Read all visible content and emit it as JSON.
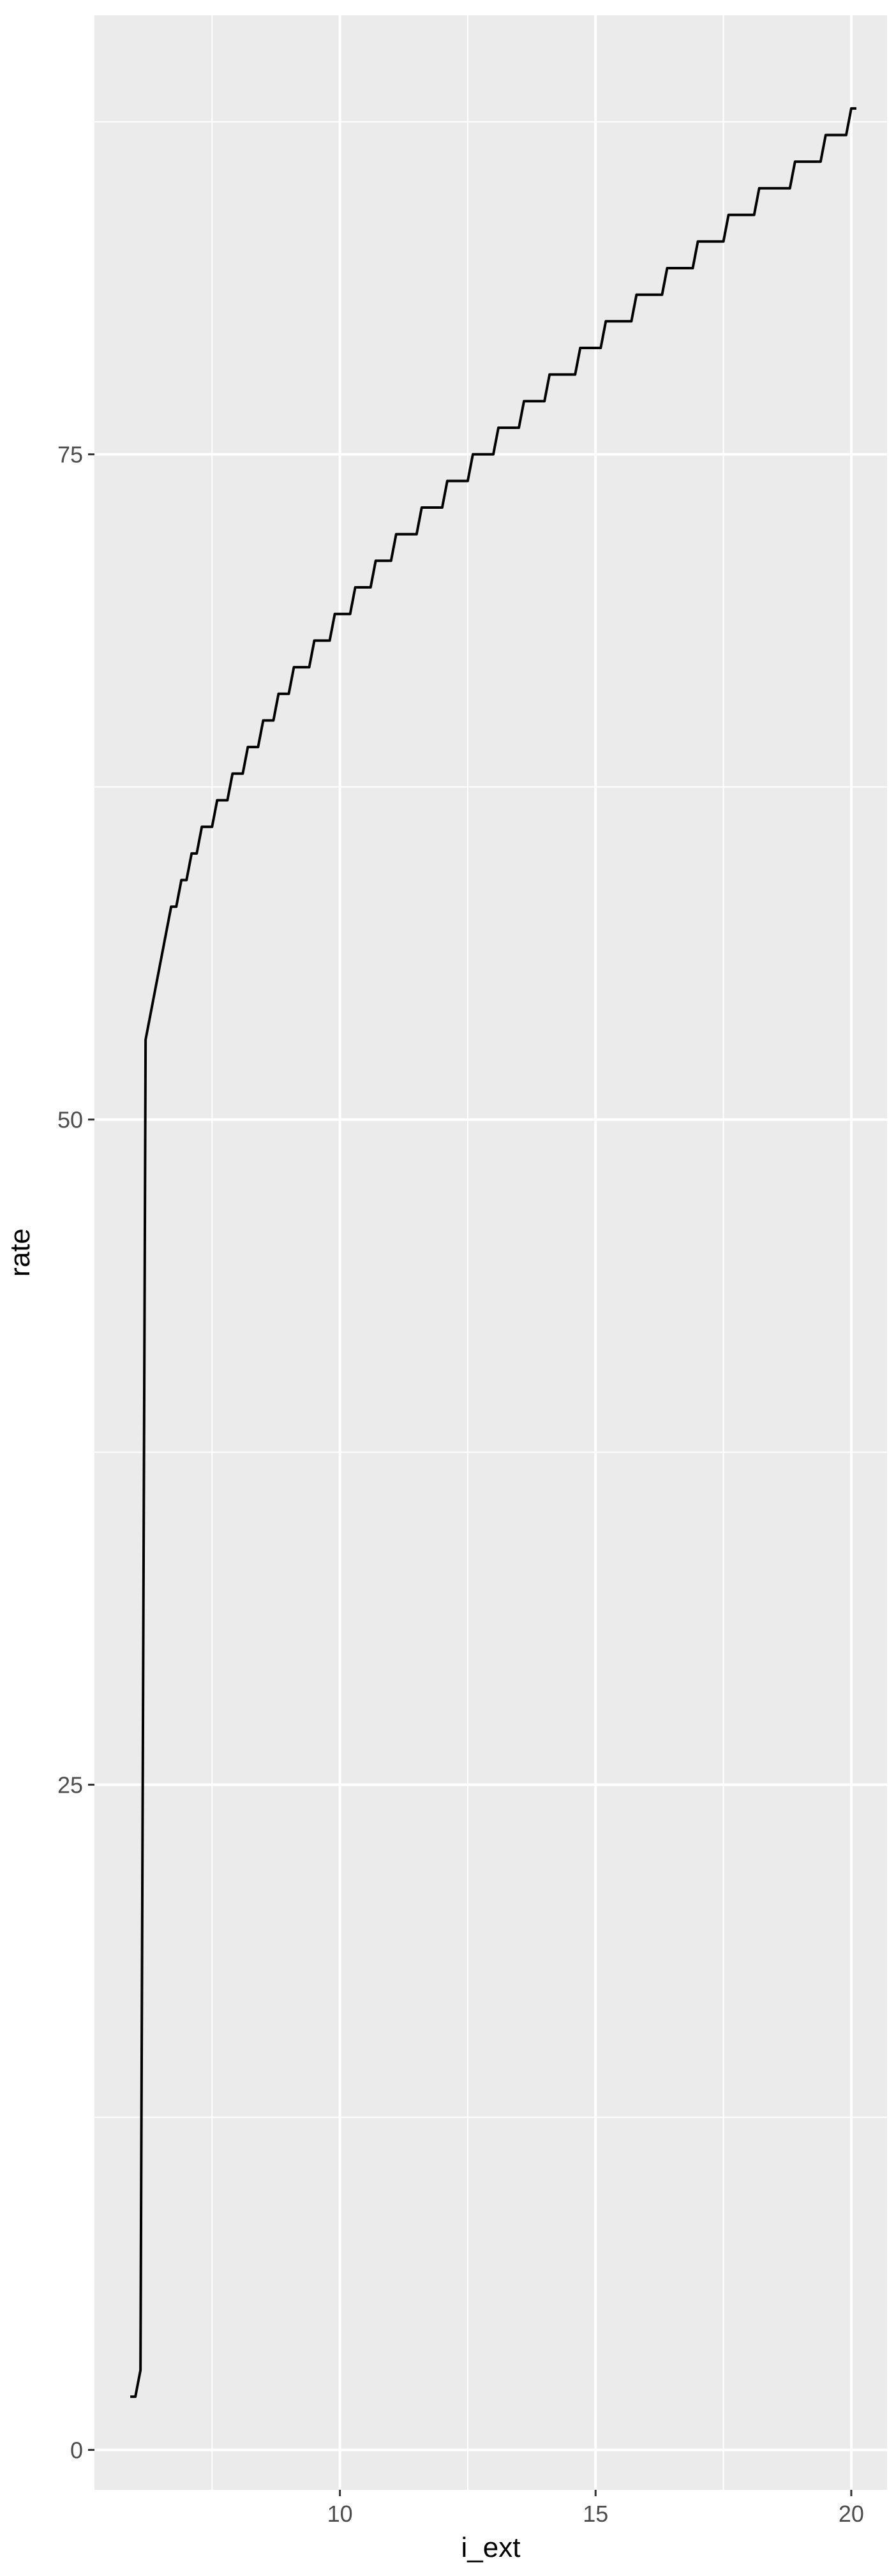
{
  "chart_data": {
    "type": "line",
    "title": "",
    "xlabel": "i_ext",
    "ylabel": "rate",
    "xlim": [
      5.2,
      20.7
    ],
    "ylim": [
      -1.5,
      91.5
    ],
    "x_ticks": [
      10,
      15,
      20
    ],
    "x_tick_labels": [
      "10",
      "15",
      "20"
    ],
    "x_minor_ticks": [
      7.5,
      12.5,
      17.5
    ],
    "y_ticks": [
      0,
      25,
      50,
      75
    ],
    "y_tick_labels": [
      "0",
      "25",
      "50",
      "75"
    ],
    "y_minor_ticks": [
      12.5,
      37.5,
      62.5,
      87.5
    ],
    "grid": true,
    "colors": {
      "panel_background": "#ebebeb",
      "grid_line": "#ffffff",
      "series_line": "#000000",
      "tick_text": "#4d4d4d",
      "axis_title": "#000000"
    },
    "series": [
      {
        "points": [
          [
            5.9,
            2.0
          ],
          [
            6.0,
            2.0
          ],
          [
            6.1,
            3.0
          ],
          [
            6.2,
            53.0
          ],
          [
            6.7,
            58.0
          ],
          [
            6.8,
            58.0
          ],
          [
            6.9,
            59.0
          ],
          [
            7.0,
            59.0
          ],
          [
            7.1,
            60.0
          ],
          [
            7.2,
            60.0
          ],
          [
            7.3,
            61.0
          ],
          [
            7.5,
            61.0
          ],
          [
            7.6,
            62.0
          ],
          [
            7.8,
            62.0
          ],
          [
            7.9,
            63.0
          ],
          [
            8.1,
            63.0
          ],
          [
            8.2,
            64.0
          ],
          [
            8.4,
            64.0
          ],
          [
            8.5,
            65.0
          ],
          [
            8.7,
            65.0
          ],
          [
            8.8,
            66.0
          ],
          [
            9.0,
            66.0
          ],
          [
            9.1,
            67.0
          ],
          [
            9.4,
            67.0
          ],
          [
            9.5,
            68.0
          ],
          [
            9.8,
            68.0
          ],
          [
            9.9,
            69.0
          ],
          [
            10.2,
            69.0
          ],
          [
            10.3,
            70.0
          ],
          [
            10.6,
            70.0
          ],
          [
            10.7,
            71.0
          ],
          [
            11.0,
            71.0
          ],
          [
            11.1,
            72.0
          ],
          [
            11.5,
            72.0
          ],
          [
            11.6,
            73.0
          ],
          [
            12.0,
            73.0
          ],
          [
            12.1,
            74.0
          ],
          [
            12.5,
            74.0
          ],
          [
            12.6,
            75.0
          ],
          [
            13.0,
            75.0
          ],
          [
            13.1,
            76.0
          ],
          [
            13.5,
            76.0
          ],
          [
            13.6,
            77.0
          ],
          [
            14.0,
            77.0
          ],
          [
            14.1,
            78.0
          ],
          [
            14.6,
            78.0
          ],
          [
            14.7,
            79.0
          ],
          [
            15.1,
            79.0
          ],
          [
            15.2,
            80.0
          ],
          [
            15.7,
            80.0
          ],
          [
            15.8,
            81.0
          ],
          [
            16.3,
            81.0
          ],
          [
            16.4,
            82.0
          ],
          [
            16.9,
            82.0
          ],
          [
            17.0,
            83.0
          ],
          [
            17.5,
            83.0
          ],
          [
            17.6,
            84.0
          ],
          [
            18.1,
            84.0
          ],
          [
            18.2,
            85.0
          ],
          [
            18.8,
            85.0
          ],
          [
            18.9,
            86.0
          ],
          [
            19.4,
            86.0
          ],
          [
            19.5,
            87.0
          ],
          [
            19.9,
            87.0
          ],
          [
            20.0,
            88.0
          ],
          [
            20.1,
            88.0
          ]
        ]
      }
    ]
  }
}
